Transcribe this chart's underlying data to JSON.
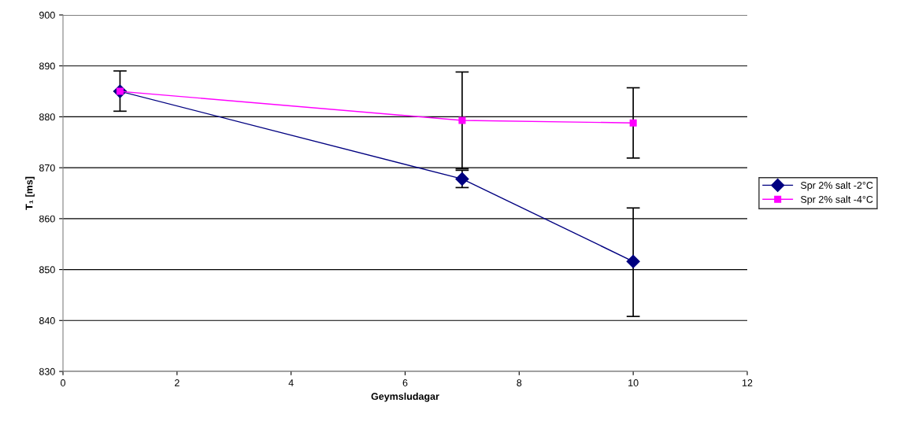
{
  "chart_data": {
    "type": "line",
    "xlabel": "Geymsludagar",
    "ylabel": "T₁ [ms]",
    "x": [
      1,
      7,
      10
    ],
    "series": [
      {
        "name": "Spr 2% salt -2°C",
        "color": "#000080",
        "marker": "diamond",
        "values": [
          885,
          867.8,
          851.6
        ],
        "errors": [
          null,
          [
            866.1,
            869.5
          ],
          [
            840.8,
            862.1
          ]
        ]
      },
      {
        "name": "Spr 2% salt -4°C",
        "color": "#ff00ff",
        "marker": "square",
        "values": [
          885,
          879.3,
          878.8
        ],
        "errors": [
          [
            881.1,
            889.0
          ],
          [
            869.8,
            888.8
          ],
          [
            871.9,
            885.7
          ]
        ]
      }
    ],
    "xlim": [
      0,
      12
    ],
    "xticks": [
      0,
      2,
      4,
      6,
      8,
      10,
      12
    ],
    "ylim": [
      830,
      900
    ],
    "yticks": [
      830,
      840,
      850,
      860,
      870,
      880,
      890,
      900
    ],
    "grid": "y",
    "legend": "right"
  }
}
